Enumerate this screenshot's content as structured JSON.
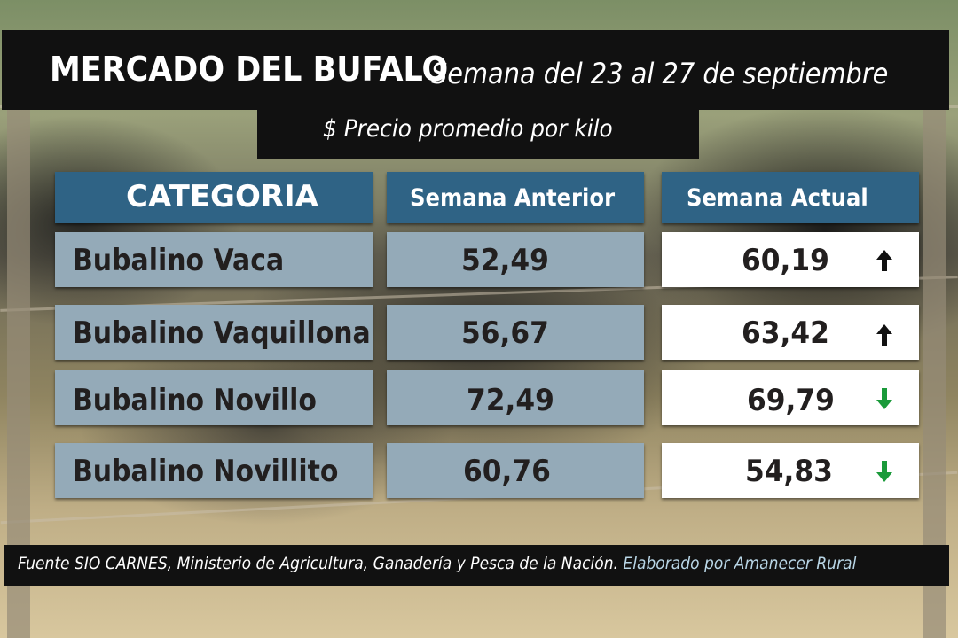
{
  "title": "MERCADO DEL BUFALO",
  "subtitle": "Semana del 23 al 27 de septiembre",
  "price_caption": "$ Precio promedio por kilo",
  "table": {
    "headers": [
      "CATEGORIA",
      "Semana Anterior",
      "Semana Actual"
    ],
    "rows": [
      {
        "categoria": "Bubalino Vaca",
        "anterior": "52,49",
        "actual": "60,19",
        "trend": "up"
      },
      {
        "categoria": "Bubalino Vaquillona",
        "anterior": "56,67",
        "actual": "63,42",
        "trend": "up"
      },
      {
        "categoria": "Bubalino Novillo",
        "anterior": "72,49",
        "actual": "69,79",
        "trend": "down"
      },
      {
        "categoria": "Bubalino Novillito",
        "anterior": "60,76",
        "actual": "54,83",
        "trend": "down"
      }
    ]
  },
  "footer": {
    "source": "Fuente SIO CARNES,  Ministerio de Agricultura, Ganadería y Pesca de la Nación.",
    "credit": "Elaborado por  Amanecer Rural"
  },
  "colors": {
    "header_bg": "#2f6385",
    "cell_bg": "#94aab8",
    "up_arrow": "#111111",
    "down_arrow": "#1a9a3a"
  },
  "icons": {
    "up": "arrow-up-icon",
    "down": "arrow-down-icon"
  }
}
